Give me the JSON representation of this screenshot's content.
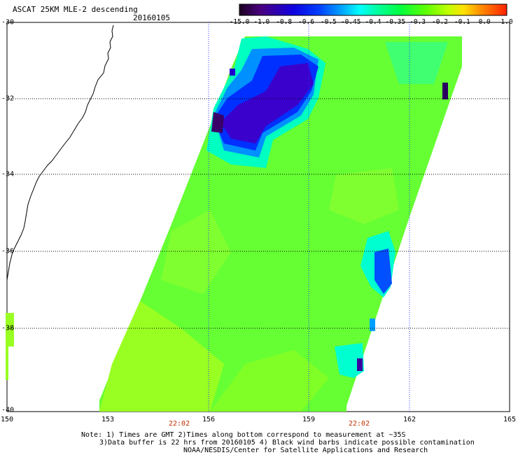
{
  "header": {
    "title": "ASCAT 25KM MLE-2 descending",
    "date": "20160105"
  },
  "colorbar": {
    "ticks": [
      "-15.0",
      "-1.0",
      "-0.8",
      "-0.6",
      "-0.5",
      "-0.45",
      "-0.4",
      "-0.35",
      "-0.3",
      "-0.2",
      "-0.1",
      "0.0",
      "1.0"
    ],
    "colors": [
      "#2a0040",
      "#4a0090",
      "#2000d0",
      "#0030ff",
      "#0090ff",
      "#00e0ff",
      "#00ffb0",
      "#00ff60",
      "#30ff00",
      "#a0ff00",
      "#ffe000",
      "#ff8000",
      "#ff2000"
    ]
  },
  "axes": {
    "lat_labels": [
      "-30",
      "-32",
      "-34",
      "-36",
      "-38",
      "-40"
    ],
    "lon_labels": [
      "150",
      "153",
      "156",
      "159",
      "162",
      "165"
    ]
  },
  "time_labels": [
    "22:02",
    "22:02"
  ],
  "notes": [
    "Note: 1) Times are GMT 2)Times along bottom correspond to measurement at ~35S",
    "3)Data buffer is 22 hrs from 20160105 4) Black wind barbs indicate possible contamination",
    "NOAA/NESDIS/Center for Satellite Applications and Research"
  ]
}
